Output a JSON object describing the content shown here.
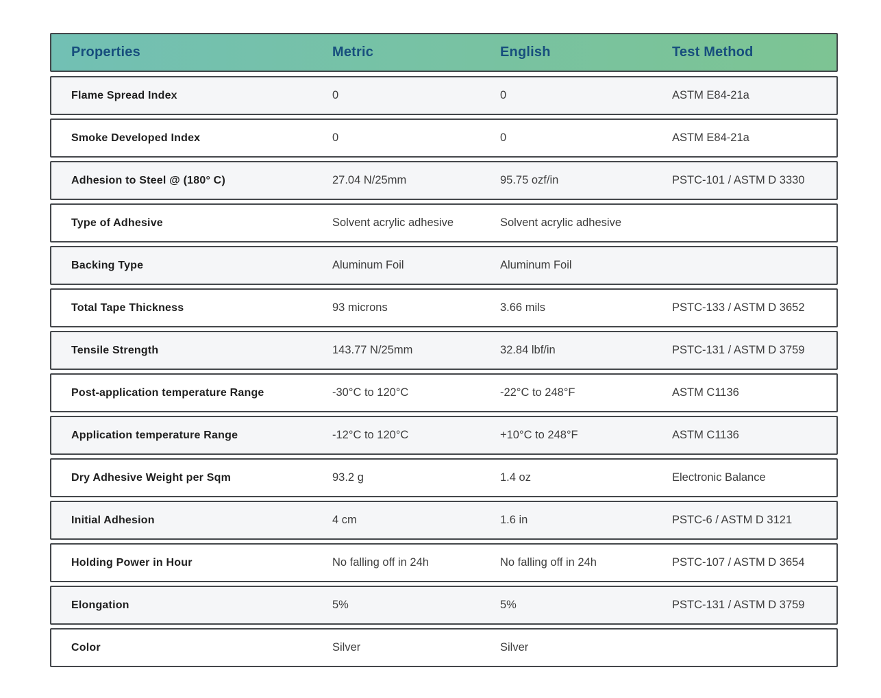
{
  "table": {
    "columns": [
      {
        "key": "property",
        "label": "Properties"
      },
      {
        "key": "metric",
        "label": "Metric"
      },
      {
        "key": "english",
        "label": "English"
      },
      {
        "key": "test_method",
        "label": "Test Method"
      }
    ],
    "rows": [
      {
        "property": "Flame Spread Index",
        "metric": "0",
        "english": "0",
        "test_method": "ASTM E84-21a"
      },
      {
        "property": "Smoke Developed Index",
        "metric": "0",
        "english": "0",
        "test_method": "ASTM E84-21a"
      },
      {
        "property": "Adhesion to Steel @ (180° C)",
        "metric": "27.04 N/25mm",
        "english": "95.75 ozf/in",
        "test_method": "PSTC-101 / ASTM D 3330"
      },
      {
        "property": "Type of Adhesive",
        "metric": "Solvent acrylic adhesive",
        "english": "Solvent acrylic adhesive",
        "test_method": ""
      },
      {
        "property": "Backing Type",
        "metric": "Aluminum Foil",
        "english": "Aluminum Foil",
        "test_method": ""
      },
      {
        "property": "Total Tape Thickness",
        "metric": "93 microns",
        "english": "3.66 mils",
        "test_method": "PSTC-133 / ASTM D 3652"
      },
      {
        "property": "Tensile Strength",
        "metric": "143.77 N/25mm",
        "english": "32.84 lbf/in",
        "test_method": "PSTC-131 / ASTM D 3759"
      },
      {
        "property": "Post-application temperature Range",
        "metric": "-30°C to 120°C",
        "english": "-22°C to 248°F",
        "test_method": "ASTM C1136"
      },
      {
        "property": "Application temperature Range",
        "metric": "-12°C to 120°C",
        "english": "+10°C to 248°F",
        "test_method": "ASTM C1136"
      },
      {
        "property": "Dry Adhesive Weight per Sqm",
        "metric": "93.2 g",
        "english": "1.4 oz",
        "test_method": "Electronic Balance"
      },
      {
        "property": "Initial Adhesion",
        "metric": "4 cm",
        "english": "1.6 in",
        "test_method": "PSTC-6 / ASTM D 3121"
      },
      {
        "property": "Holding Power in Hour",
        "metric": "No falling off in 24h",
        "english": "No falling off in 24h",
        "test_method": "PSTC-107 / ASTM D 3654"
      },
      {
        "property": "Elongation",
        "metric": "5%",
        "english": "5%",
        "test_method": "PSTC-131 / ASTM D 3759"
      },
      {
        "property": "Color",
        "metric": "Silver",
        "english": "Silver",
        "test_method": ""
      }
    ]
  },
  "colors": {
    "header_gradient_start": "#72c0b4",
    "header_gradient_end": "#7dc493",
    "header_text": "#174e7d",
    "row_border": "#44474b",
    "row_alt_bg": "#f5f6f8",
    "row_bg": "#ffffff",
    "property_text": "#1f1f1f",
    "value_text": "#3d3d3d"
  }
}
